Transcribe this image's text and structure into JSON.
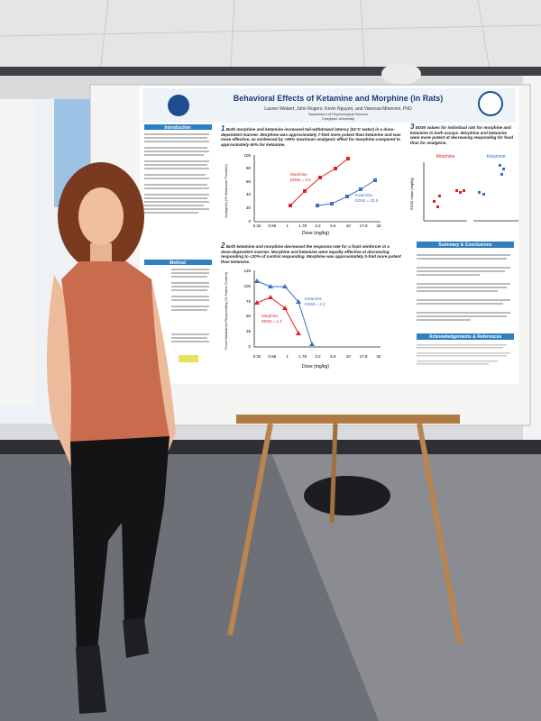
{
  "poster": {
    "title": "Behavioral Effects of Ketamine and Morphine (in Rats)",
    "authors": "Lauren Webert, John Rogers, Kevin Nguyen, and Vanessa Minervini, PhD",
    "department": "Department of Psychological Science",
    "university": "Creighton University",
    "sections": {
      "introduction": "Introduction",
      "method": "Method",
      "summary": "Summary & Conclusions",
      "acknowledgements": "Acknowledgements & References"
    },
    "findings": [
      {
        "number": "1",
        "text": "Both morphine and ketamine increased tail-withdrawal latency (51°C water) in a dose-dependent manner. Morphine was approximately 7-fold more potent than ketamine and was more effective, as evidenced by >90% maximum analgesic effect for morphine compared to approximately 60% for ketamine."
      },
      {
        "number": "2",
        "text": "Both ketamine and morphine decreased the response rate for a food reinforcer in a dose-dependent manner. Morphine and ketamine were equally effective at decreasing responding to <20% of control responding. Morphine was approximately 2-fold more potent than ketamine."
      },
      {
        "number": "3",
        "text": "ED50 values for individual rats for morphine and ketamine in both assays. Morphine and ketamine were more potent at decreasing responding for food than for analgesia."
      }
    ],
    "figure1": {
      "y_label": "Analgesia (% Maximum Possible)",
      "x_label": "Dose (mg/kg)",
      "yticks": [
        "100",
        "80",
        "60",
        "40",
        "20",
        "0"
      ],
      "xticks": [
        "0.32",
        "0.56",
        "1",
        "1.78",
        "3.2",
        "5.6",
        "10",
        "17.8",
        "32"
      ],
      "morphine": "Morphine",
      "morphine_ed50": "ED50 = 2.9",
      "ketamine": "Ketamine",
      "ketamine_ed50": "ED50 = 20.5"
    },
    "figure2": {
      "y_label": "Food-Maintained Responding (% Saline Control)",
      "x_label": "Dose (mg/kg)",
      "yticks": [
        "125",
        "100",
        "75",
        "50",
        "25",
        "0"
      ],
      "xticks": [
        "0.32",
        "0.56",
        "1",
        "1.78",
        "3.2",
        "5.6",
        "10",
        "17.8",
        "32"
      ],
      "morphine": "Morphine",
      "morphine_ed50": "ED50 = 1.2",
      "ketamine": "Ketamine",
      "ketamine_ed50": "ED50 = 2.2"
    },
    "figure3": {
      "y_label": "ED50 Value (mg/kg)",
      "morphine": "Morphine",
      "ketamine": "Ketamine"
    }
  }
}
